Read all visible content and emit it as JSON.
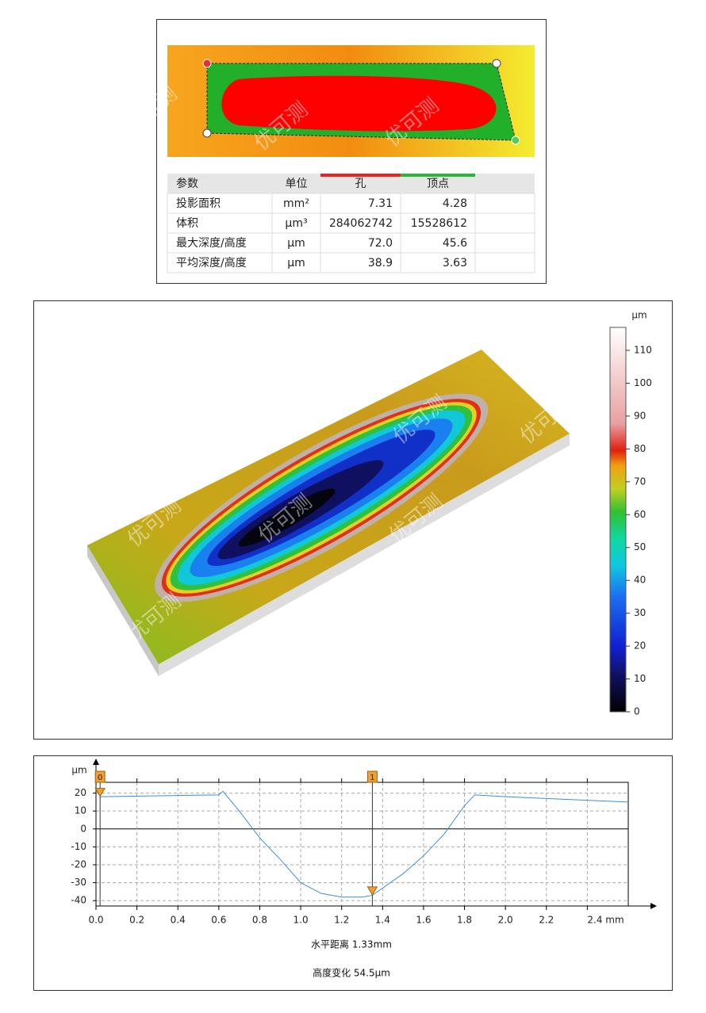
{
  "watermark": "优可测",
  "table": {
    "header": [
      "参数",
      "单位",
      "孔",
      "顶点"
    ],
    "legend": [
      {
        "name": "孔",
        "color": "#ee2222"
      },
      {
        "name": "顶点",
        "color": "#22bb33"
      }
    ],
    "rows": [
      [
        "投影面积",
        "mm²",
        "7.31",
        "4.28"
      ],
      [
        "体积",
        "μm³",
        "284062742",
        "15528612"
      ],
      [
        "最大深度/高度",
        "μm",
        "72.0",
        "45.6"
      ],
      [
        "平均深度/高度",
        "μm",
        "38.9",
        "3.63"
      ]
    ]
  },
  "chart_data": [
    {
      "type": "colorbar",
      "unit": "μm",
      "ylim": [
        0,
        117
      ],
      "yticks": [
        0,
        10,
        20,
        30,
        40,
        50,
        60,
        70,
        80,
        90,
        100,
        110
      ]
    },
    {
      "type": "line",
      "y_label": "μm",
      "x": [
        0.02,
        0.3,
        0.6,
        0.62,
        0.7,
        0.8,
        0.9,
        1.0,
        1.1,
        1.2,
        1.3,
        1.35,
        1.4,
        1.5,
        1.6,
        1.7,
        1.8,
        1.85,
        2.0,
        2.6
      ],
      "series": [
        {
          "color": "#3a8fd8",
          "values": [
            18,
            18.5,
            19,
            21,
            10,
            -5,
            -17,
            -30,
            -36,
            -38,
            -38,
            -37,
            -33,
            -25,
            -15,
            -3,
            13,
            19,
            18,
            15
          ]
        }
      ],
      "xlim": [
        0,
        2.6
      ],
      "ylim": [
        -43,
        26
      ],
      "xticks": [
        {
          "value": 0,
          "label": "0.0"
        },
        0.2,
        0.4,
        0.6,
        0.8,
        {
          "value": 1,
          "label": "1.0"
        },
        1.2,
        1.4,
        1.6,
        1.8,
        {
          "value": 2,
          "label": "2.0"
        },
        2.2,
        {
          "value": 2.4,
          "label": "2.4 mm"
        }
      ],
      "yticks": [
        -40,
        -30,
        -20,
        -10,
        0,
        10,
        20
      ],
      "grid": true,
      "cursors": [
        {
          "label": "0",
          "x": 0.02,
          "y": 20
        },
        {
          "label": "1",
          "x": 1.35,
          "y": -35
        }
      ],
      "annotations": [
        "水平距离 1.33mm",
        "高度变化 54.5μm"
      ]
    }
  ]
}
